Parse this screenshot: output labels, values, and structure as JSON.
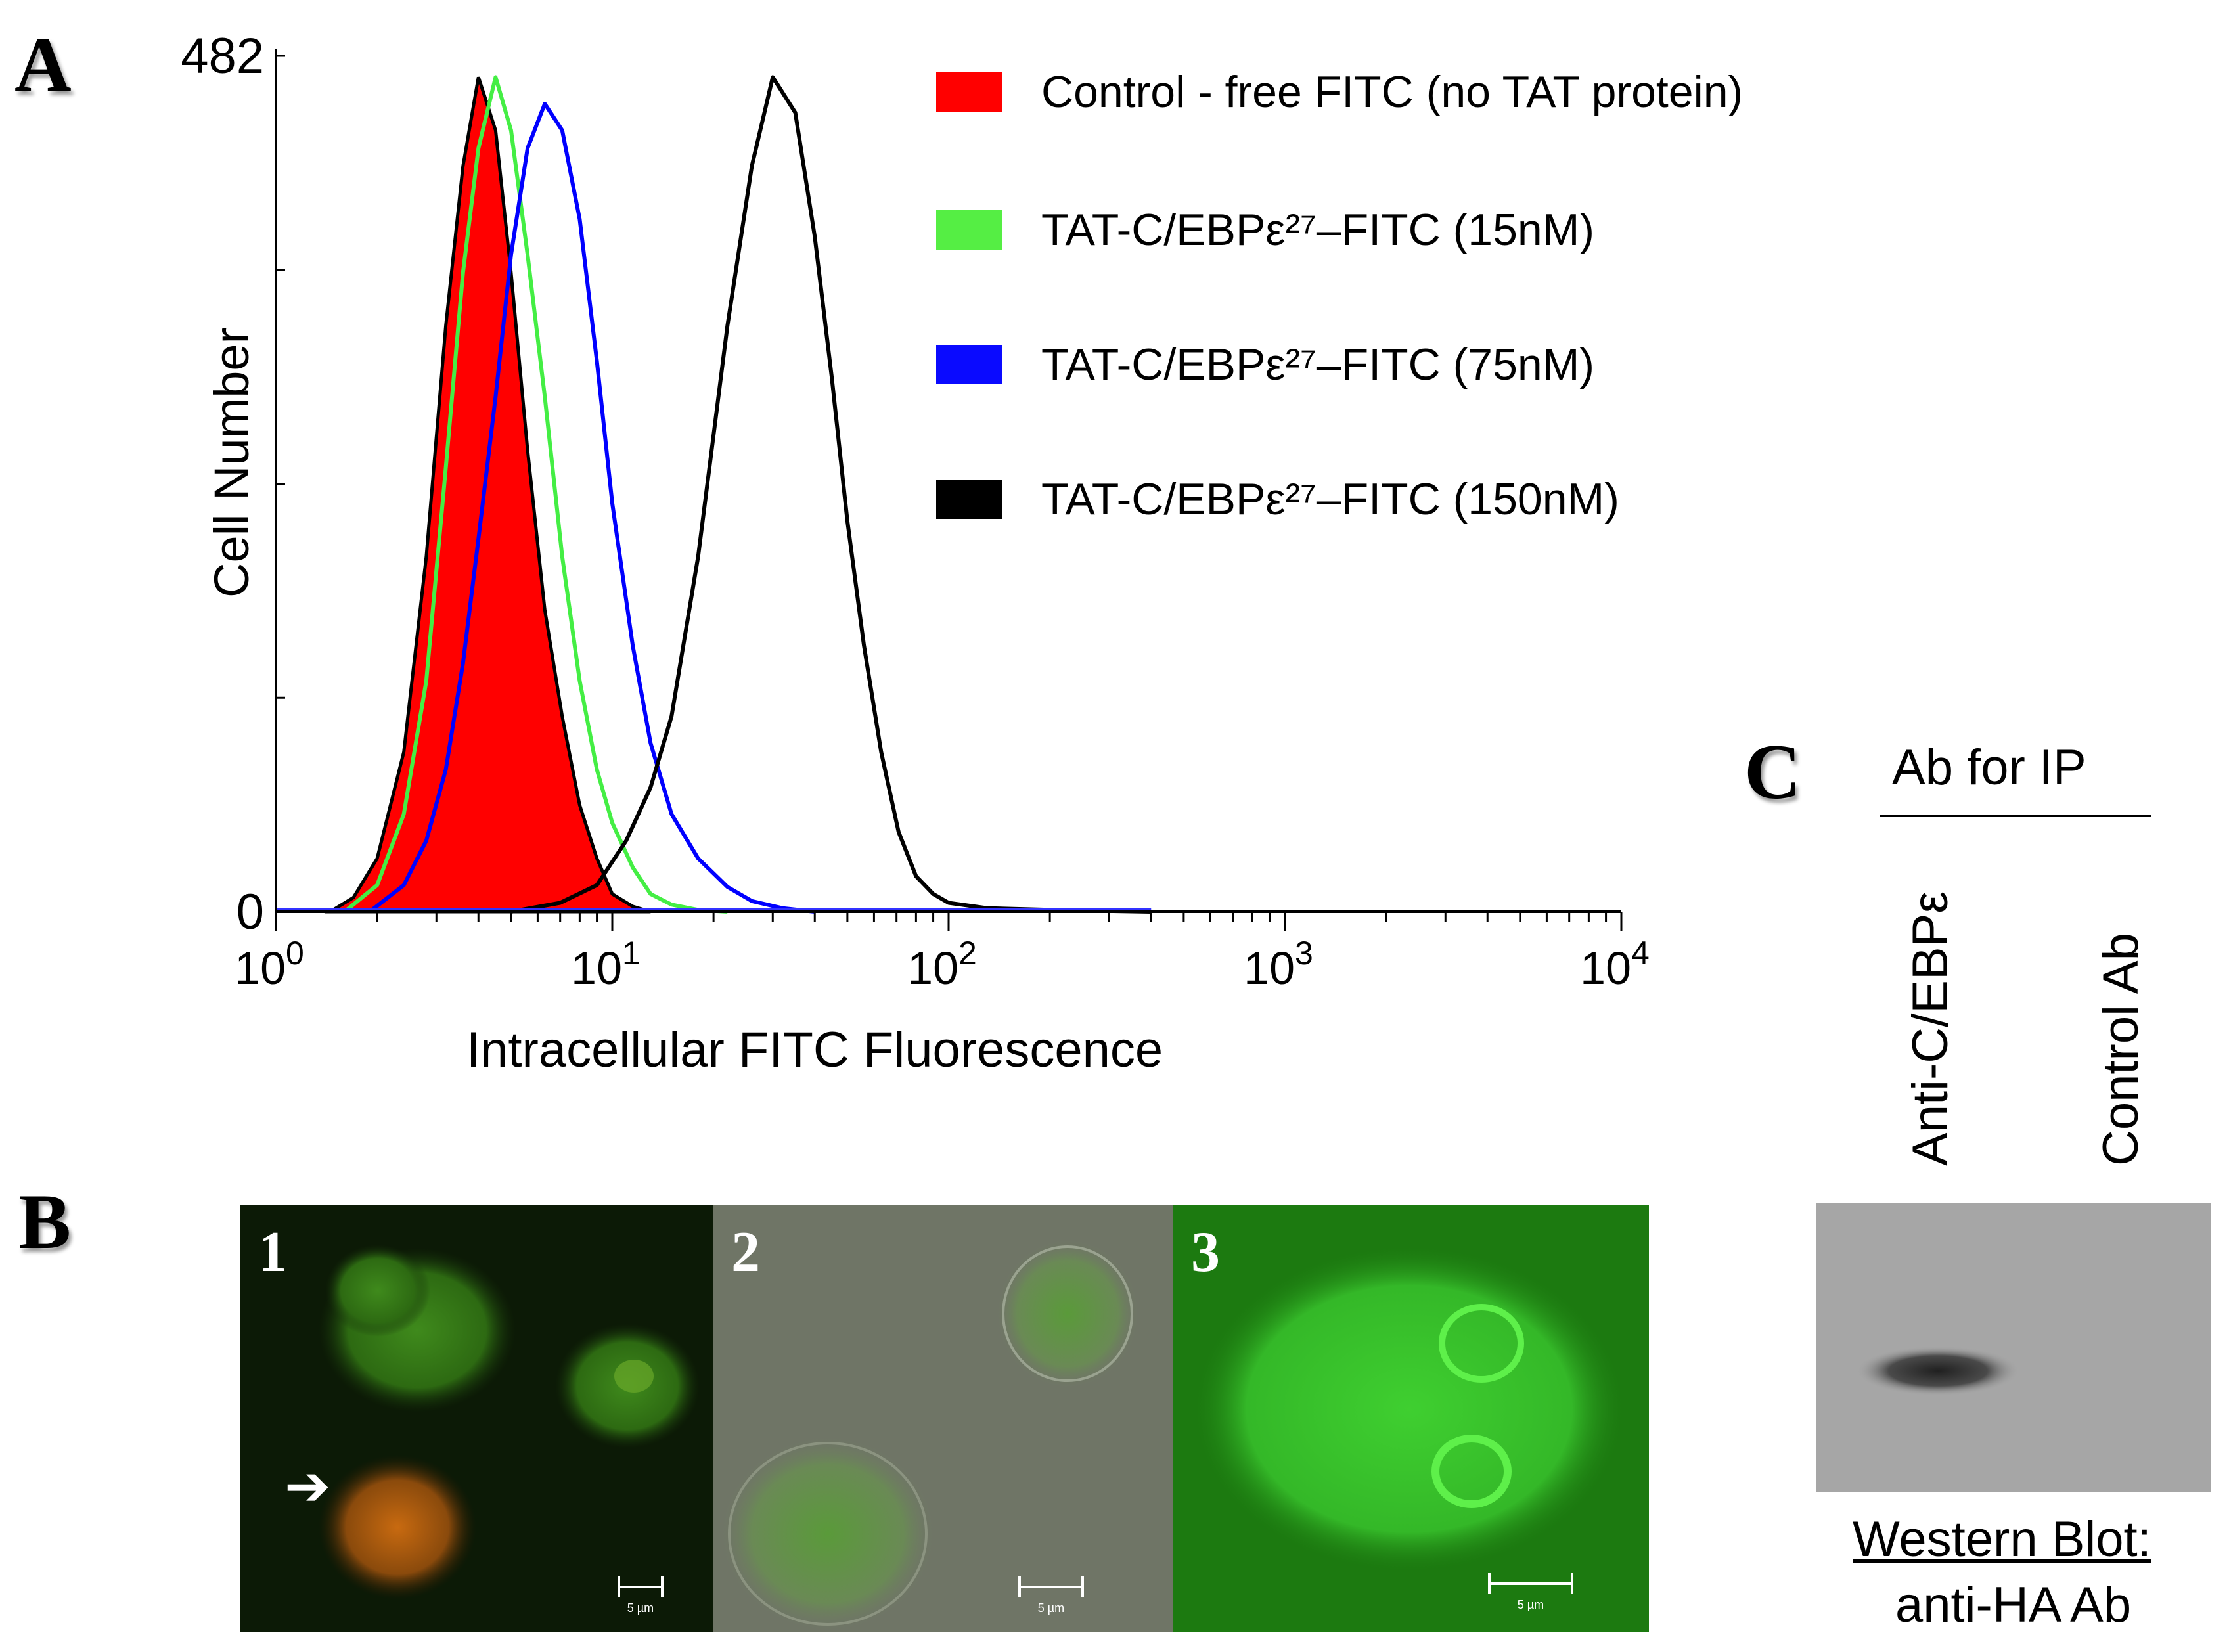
{
  "panels": {
    "a_letter": "A",
    "b_letter": "B",
    "c_letter": "C"
  },
  "chart_data": {
    "type": "area",
    "title": "",
    "xlabel": "Intracellular FITC Fluorescence",
    "ylabel": "Cell Number",
    "x_scale": "log",
    "xlim": [
      1,
      10000
    ],
    "ylim": [
      0,
      482
    ],
    "x_tick_labels": [
      {
        "base": "10",
        "exp": "0"
      },
      {
        "base": "10",
        "exp": "1"
      },
      {
        "base": "10",
        "exp": "2"
      },
      {
        "base": "10",
        "exp": "3"
      },
      {
        "base": "10",
        "exp": "4"
      }
    ],
    "y_tick_labels": [
      "0",
      "482"
    ],
    "legend_position": "top-right",
    "series": [
      {
        "name": "Control - free FITC (no TAT protein)",
        "color": "#ff0000",
        "filled": true,
        "x": [
          1.45,
          1.7,
          2.0,
          2.4,
          2.8,
          3.2,
          3.6,
          4.0,
          4.5,
          5.0,
          5.6,
          6.3,
          7.1,
          8.0,
          9.0,
          10.0,
          11.5,
          13.0
        ],
        "y": [
          0,
          8,
          30,
          90,
          200,
          330,
          420,
          470,
          440,
          360,
          260,
          170,
          110,
          60,
          30,
          10,
          3,
          0
        ]
      },
      {
        "name": "TAT-C/EBPε²⁷–FITC (15nM)",
        "color": "#44ee44",
        "filled": false,
        "x": [
          1.6,
          2.0,
          2.4,
          2.8,
          3.2,
          3.6,
          4.0,
          4.5,
          5.0,
          5.6,
          6.3,
          7.1,
          8.0,
          9.0,
          10.0,
          11.5,
          13.0,
          15.0,
          18.0,
          22.0
        ],
        "y": [
          0,
          15,
          55,
          130,
          250,
          360,
          430,
          470,
          440,
          370,
          290,
          200,
          130,
          80,
          50,
          25,
          10,
          4,
          1,
          0
        ]
      },
      {
        "name": "TAT-C/EBPε²⁷–FITC (75nM)",
        "color": "#0000ff",
        "filled": false,
        "x": [
          1.9,
          2.4,
          2.8,
          3.2,
          3.6,
          4.0,
          4.5,
          5.0,
          5.6,
          6.3,
          7.1,
          8.0,
          9.0,
          10.0,
          11.5,
          13.0,
          15.0,
          18.0,
          22.0,
          26.0,
          32.0,
          40.0
        ],
        "y": [
          0,
          15,
          40,
          80,
          140,
          210,
          290,
          370,
          430,
          455,
          440,
          390,
          310,
          230,
          150,
          95,
          55,
          30,
          14,
          6,
          2,
          0
        ]
      },
      {
        "name": "TAT-C/EBPε²⁷–FITC (150nM)",
        "color": "#000000",
        "filled": false,
        "x": [
          5.0,
          7.0,
          9.0,
          11.0,
          13.0,
          15.0,
          18.0,
          22.0,
          26.0,
          30.0,
          35.0,
          40.0,
          45.0,
          50.0,
          56.0,
          63.0,
          71.0,
          80.0,
          90.0,
          100.0,
          130.0,
          200.0,
          400.0
        ],
        "y": [
          0,
          5,
          15,
          40,
          70,
          110,
          200,
          330,
          420,
          470,
          450,
          380,
          300,
          220,
          150,
          90,
          45,
          20,
          10,
          5,
          2,
          1,
          0
        ]
      }
    ]
  },
  "panel_b": {
    "images": [
      {
        "label": "1",
        "scale": "5 µm"
      },
      {
        "label": "2",
        "scale": "5 µm"
      },
      {
        "label": "3",
        "scale": "5 µm"
      }
    ]
  },
  "panel_c": {
    "header": "Ab for IP",
    "lane_labels": [
      "Anti-C/EBPε",
      "Control Ab"
    ],
    "caption_line1": "Western Blot:",
    "caption_line2": "anti-HA Ab"
  }
}
